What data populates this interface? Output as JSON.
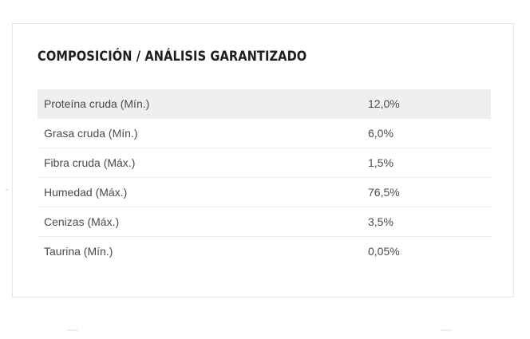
{
  "section": {
    "title": "COMPOSICIÓN / ANÁLISIS GARANTIZADO"
  },
  "analysis": {
    "rows": [
      {
        "label": "Proteína cruda (Mín.)",
        "value": "12,0%"
      },
      {
        "label": "Grasa cruda (Mín.)",
        "value": "6,0%"
      },
      {
        "label": "Fibra cruda (Máx.)",
        "value": "1,5%"
      },
      {
        "label": "Humedad (Máx.)",
        "value": "76,5%"
      },
      {
        "label": "Cenizas (Máx.)",
        "value": "3,5%"
      },
      {
        "label": "Taurina (Mín.)",
        "value": "0,05%"
      }
    ]
  }
}
